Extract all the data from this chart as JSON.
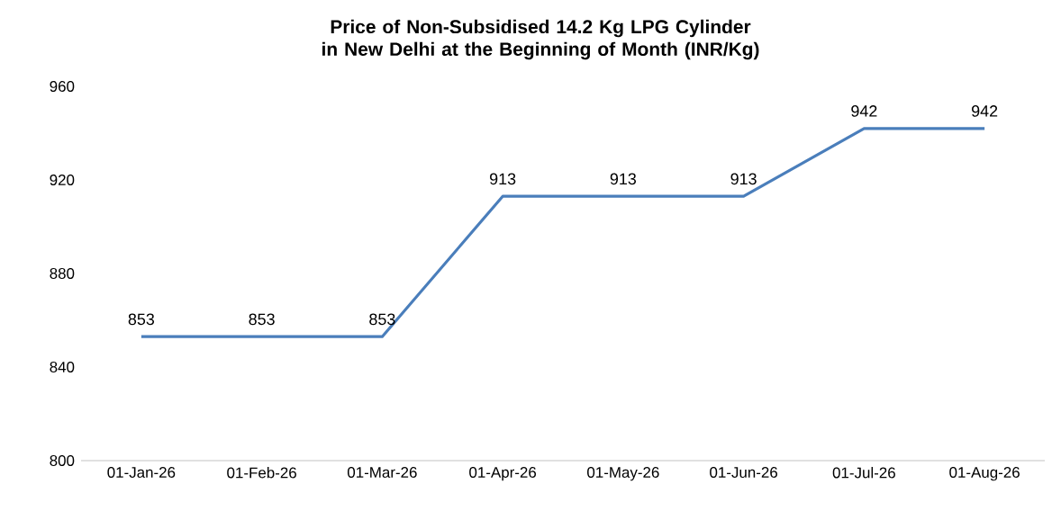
{
  "chart_data": {
    "type": "line",
    "title": "Price of Non-Subsidised 14.2 Kg LPG Cylinder in New Delhi at the Beginning of Month (INR/Kg)",
    "categories": [
      "01-Jan-26",
      "01-Feb-26",
      "01-Mar-26",
      "01-Apr-26",
      "01-May-26",
      "01-Jun-26",
      "01-Jul-26",
      "01-Aug-26"
    ],
    "series": [
      {
        "color": "#4a7ebb",
        "values": [
          853,
          853,
          853,
          913,
          913,
          913,
          942,
          942
        ]
      }
    ],
    "ylim": [
      800,
      960
    ],
    "yticks": [
      800,
      840,
      880,
      920,
      960
    ],
    "data_labels": true,
    "marker": "none",
    "line_style": "solid"
  }
}
